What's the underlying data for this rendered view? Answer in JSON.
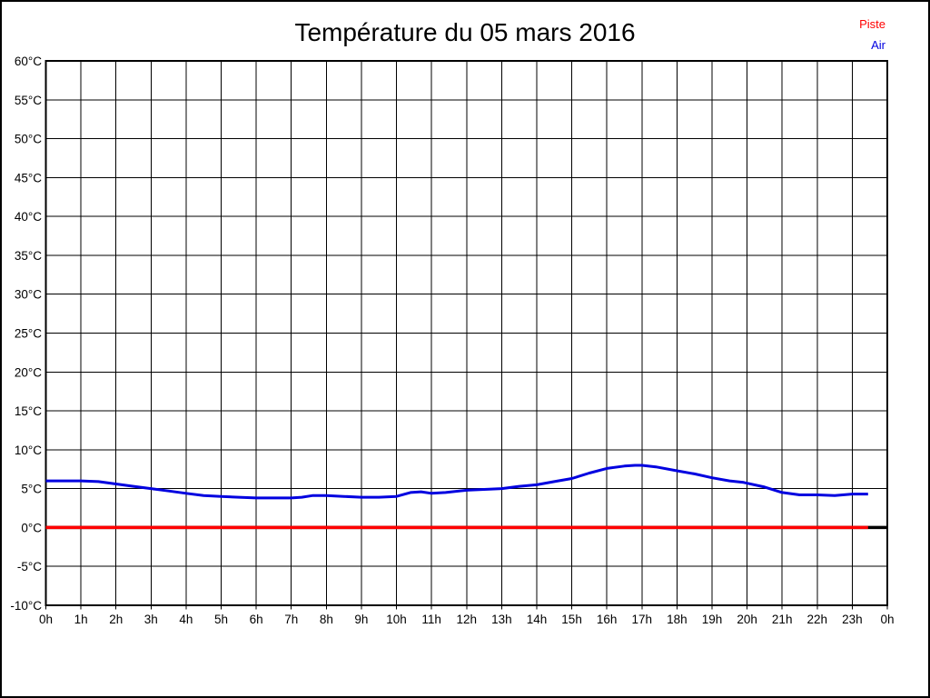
{
  "title": "Température du 05 mars 2016",
  "legend": {
    "position": "top-right",
    "items": [
      {
        "name": "piste",
        "label": "Piste",
        "color": "#ff0000"
      },
      {
        "name": "air",
        "label": "Air",
        "color": "#0000e0"
      }
    ]
  },
  "chart_data": {
    "type": "line",
    "title": "Température du 05 mars 2016",
    "xlabel": "",
    "ylabel": "",
    "xlim": [
      0,
      24
    ],
    "ylim": [
      -10,
      60
    ],
    "grid": true,
    "grid_color": "#000000",
    "y_tick_labels": [
      "60°C",
      "55°C",
      "50°C",
      "45°C",
      "40°C",
      "35°C",
      "30°C",
      "25°C",
      "20°C",
      "15°C",
      "10°C",
      "5°C",
      "0°C",
      "-5°C",
      "-10°C"
    ],
    "y_tick_values": [
      60,
      55,
      50,
      45,
      40,
      35,
      30,
      25,
      20,
      15,
      10,
      5,
      0,
      -5,
      -10
    ],
    "x_tick_hours": [
      0,
      1,
      2,
      3,
      4,
      5,
      6,
      7,
      8,
      9,
      10,
      11,
      12,
      13,
      14,
      15,
      16,
      17,
      18,
      19,
      20,
      21,
      22,
      23,
      24
    ],
    "x_tick_labels": [
      "0h",
      "1h",
      "2h",
      "3h",
      "4h",
      "5h",
      "6h",
      "7h",
      "8h",
      "9h",
      "10h",
      "11h",
      "12h",
      "13h",
      "14h",
      "15h",
      "16h",
      "17h",
      "18h",
      "19h",
      "20h",
      "21h",
      "22h",
      "23h",
      "0h"
    ],
    "axis_zero_line": {
      "y": 0,
      "color": "#000000",
      "width": 3.5
    },
    "series": [
      {
        "name": "Piste",
        "color": "#ff0000",
        "width": 3.5,
        "points": [
          [
            0,
            0
          ],
          [
            23.45,
            0
          ]
        ]
      },
      {
        "name": "Air",
        "color": "#0000e0",
        "width": 3,
        "points": [
          [
            0,
            6.0
          ],
          [
            0.5,
            6.0
          ],
          [
            1,
            6.0
          ],
          [
            1.5,
            5.9
          ],
          [
            2,
            5.6
          ],
          [
            2.5,
            5.3
          ],
          [
            3,
            5.0
          ],
          [
            3.5,
            4.7
          ],
          [
            4,
            4.4
          ],
          [
            4.5,
            4.1
          ],
          [
            5,
            4.0
          ],
          [
            5.5,
            3.9
          ],
          [
            6,
            3.8
          ],
          [
            6.5,
            3.8
          ],
          [
            7,
            3.8
          ],
          [
            7.3,
            3.9
          ],
          [
            7.6,
            4.1
          ],
          [
            8,
            4.1
          ],
          [
            8.5,
            4.0
          ],
          [
            9,
            3.9
          ],
          [
            9.5,
            3.9
          ],
          [
            10,
            4.0
          ],
          [
            10.4,
            4.5
          ],
          [
            10.7,
            4.6
          ],
          [
            11,
            4.4
          ],
          [
            11.4,
            4.5
          ],
          [
            12,
            4.8
          ],
          [
            12.5,
            4.9
          ],
          [
            13,
            5.0
          ],
          [
            13.5,
            5.3
          ],
          [
            14,
            5.5
          ],
          [
            14.5,
            5.9
          ],
          [
            15,
            6.3
          ],
          [
            15.5,
            7.0
          ],
          [
            16,
            7.6
          ],
          [
            16.5,
            7.9
          ],
          [
            16.8,
            8.0
          ],
          [
            17,
            8.0
          ],
          [
            17.4,
            7.8
          ],
          [
            18,
            7.3
          ],
          [
            18.5,
            6.9
          ],
          [
            19,
            6.4
          ],
          [
            19.5,
            6.0
          ],
          [
            19.9,
            5.8
          ],
          [
            20.5,
            5.2
          ],
          [
            21,
            4.5
          ],
          [
            21.5,
            4.2
          ],
          [
            22,
            4.2
          ],
          [
            22.5,
            4.1
          ],
          [
            23,
            4.3
          ],
          [
            23.45,
            4.3
          ]
        ]
      }
    ]
  }
}
